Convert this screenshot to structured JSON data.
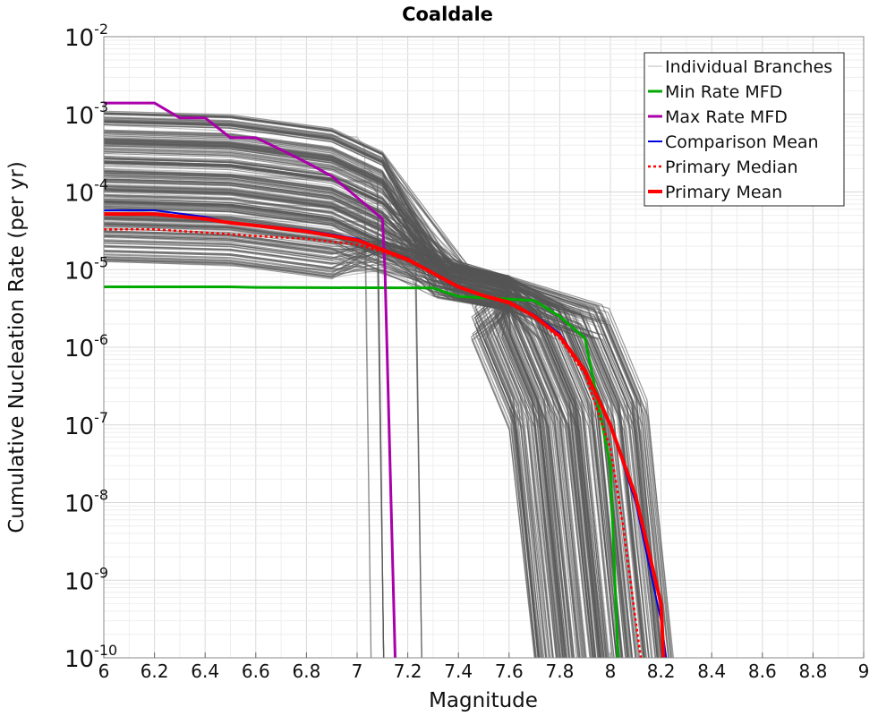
{
  "chart_data": {
    "type": "line",
    "title": "Coaldale",
    "xlabel": "Magnitude",
    "ylabel": "Cumulative Nucleation Rate (per yr)",
    "xlim": [
      6,
      9
    ],
    "ylim": [
      1e-10,
      0.01
    ],
    "yscale": "log",
    "grid": true,
    "legend_position": "top-right",
    "x_ticks": [
      "6",
      "6.2",
      "6.4",
      "6.6",
      "6.8",
      "7",
      "7.2",
      "7.4",
      "7.6",
      "7.8",
      "8",
      "8.2",
      "8.4",
      "8.6",
      "8.8",
      "9"
    ],
    "y_ticks": [
      {
        "base": "10",
        "exp": "-10"
      },
      {
        "base": "10",
        "exp": "-9"
      },
      {
        "base": "10",
        "exp": "-8"
      },
      {
        "base": "10",
        "exp": "-7"
      },
      {
        "base": "10",
        "exp": "-6"
      },
      {
        "base": "10",
        "exp": "-5"
      },
      {
        "base": "10",
        "exp": "-4"
      },
      {
        "base": "10",
        "exp": "-3"
      },
      {
        "base": "10",
        "exp": "-2"
      }
    ],
    "series": [
      {
        "name": "Min Rate MFD",
        "color": "#00aa00",
        "width": 3,
        "dash": "",
        "x": [
          6.0,
          6.5,
          6.6,
          7.3,
          7.4,
          7.7,
          7.8,
          7.9,
          8.0,
          8.03
        ],
        "y": [
          6e-06,
          6e-06,
          5.9e-06,
          5.8e-06,
          4.5e-06,
          4e-06,
          2.5e-06,
          1.3e-06,
          3e-08,
          1e-10
        ]
      },
      {
        "name": "Max Rate MFD",
        "color": "#aa00aa",
        "width": 3,
        "dash": "",
        "x": [
          6.0,
          6.2,
          6.3,
          6.4,
          6.5,
          6.6,
          6.7,
          6.8,
          6.9,
          7.0,
          7.1,
          7.11,
          7.15
        ],
        "y": [
          0.0014,
          0.0014,
          0.0009,
          0.0009,
          0.0005,
          0.0005,
          0.00035,
          0.00024,
          0.00016,
          8.5e-05,
          4.5e-05,
          1e-05,
          1e-10
        ]
      },
      {
        "name": "Comparison Mean",
        "color": "#0000dd",
        "width": 2,
        "dash": "",
        "x": [
          6.0,
          6.2,
          6.4,
          6.5,
          6.6,
          6.8,
          7.0,
          7.1,
          7.2,
          7.3,
          7.4,
          7.5,
          7.6,
          7.7,
          7.8,
          7.9,
          8.0,
          8.1,
          8.2,
          8.22
        ],
        "y": [
          5.8e-05,
          5.8e-05,
          4.8e-05,
          4e-05,
          3.8e-05,
          3.2e-05,
          2.5e-05,
          1.8e-05,
          1.4e-05,
          9e-06,
          6e-06,
          4.5e-06,
          3.8e-06,
          2.6e-06,
          1.5e-06,
          5e-07,
          1e-07,
          1e-08,
          3e-10,
          1e-10
        ]
      },
      {
        "name": "Primary Median",
        "color": "#ff0000",
        "width": 2.5,
        "dash": "3,3",
        "x": [
          6.0,
          6.2,
          6.4,
          6.6,
          6.8,
          7.0,
          7.1,
          7.2,
          7.3,
          7.4,
          7.5,
          7.6,
          7.7,
          7.8,
          7.9,
          8.0,
          8.05,
          8.1,
          8.12
        ],
        "y": [
          3.3e-05,
          3.3e-05,
          3e-05,
          2.7e-05,
          2.5e-05,
          2.1e-05,
          1.7e-05,
          1.3e-05,
          9e-06,
          6e-06,
          4.5e-06,
          3.6e-06,
          2.5e-06,
          1.3e-06,
          4.5e-07,
          5e-08,
          5e-09,
          3e-10,
          1e-10
        ]
      },
      {
        "name": "Primary Mean",
        "color": "#ff0000",
        "width": 4,
        "dash": "",
        "x": [
          6.0,
          6.2,
          6.4,
          6.5,
          6.6,
          6.8,
          7.0,
          7.1,
          7.2,
          7.3,
          7.4,
          7.5,
          7.6,
          7.7,
          7.8,
          7.9,
          8.0,
          8.1,
          8.2,
          8.21
        ],
        "y": [
          5.2e-05,
          5.2e-05,
          4.5e-05,
          4e-05,
          3.7e-05,
          3.1e-05,
          2.4e-05,
          1.8e-05,
          1.35e-05,
          9e-06,
          6e-06,
          4.6e-06,
          3.8e-06,
          2.5e-06,
          1.4e-06,
          5e-07,
          1e-07,
          1.2e-08,
          5e-10,
          1e-10
        ]
      }
    ],
    "branches": {
      "name": "Individual Branches",
      "color": "#555555",
      "count": 260,
      "rate_range": [
        1.2e-05,
        0.0012
      ],
      "cutoff_range": [
        7.7,
        8.25
      ]
    }
  }
}
